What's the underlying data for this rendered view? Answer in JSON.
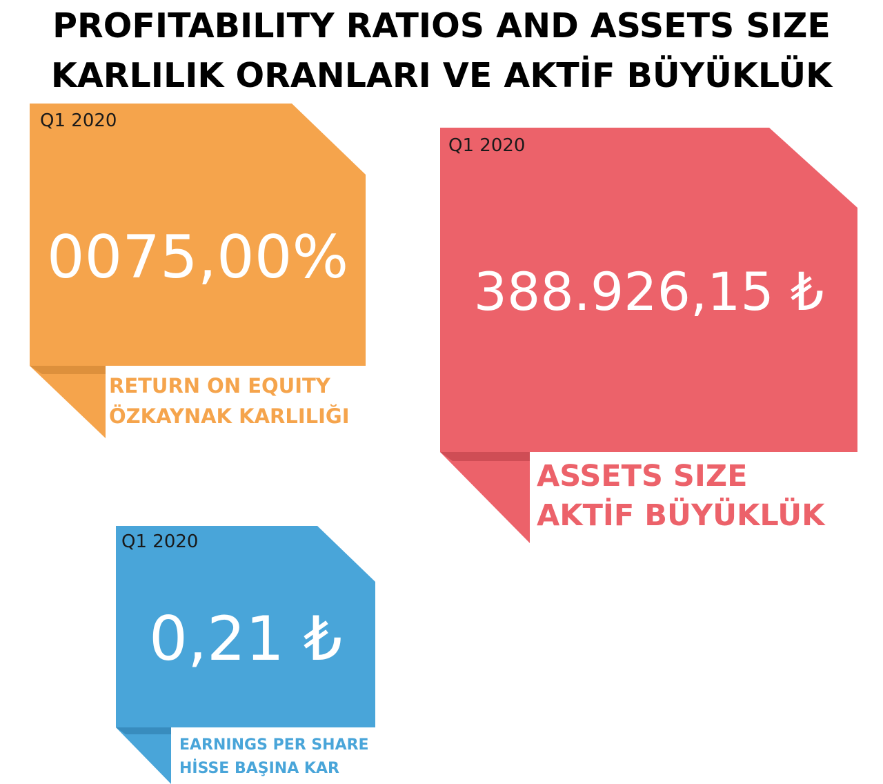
{
  "title": {
    "line1": "PROFITABILITY RATIOS AND ASSETS SIZE",
    "line2": "KARLILIK ORANLARI VE AKTİF BÜYÜKLÜK"
  },
  "cards": {
    "roe": {
      "period": "Q1 2020",
      "value": "0075,00%",
      "label_en": "RETURN ON EQUITY",
      "label_tr": "ÖZKAYNAK KARLILIĞI",
      "color": "#f5a44c"
    },
    "assets": {
      "period": "Q1 2020",
      "value": "388.926,15 ₺",
      "label_en": "ASSETS SIZE",
      "label_tr": "AKTİF BÜYÜKLÜK",
      "color": "#ec626a"
    },
    "eps": {
      "period": "Q1 2020",
      "value": "0,21 ₺",
      "label_en": "EARNINGS PER SHARE",
      "label_tr": "HİSSE BAŞINA KAR",
      "color": "#49a5d9"
    }
  }
}
